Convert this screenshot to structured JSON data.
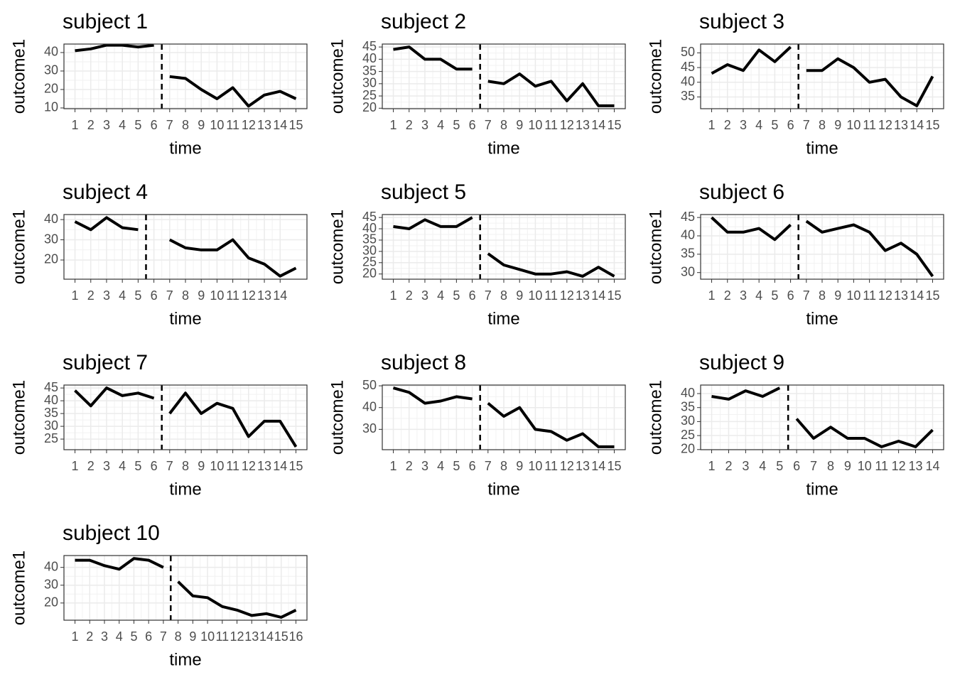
{
  "chart_data": [
    {
      "type": "line",
      "title": "subject 1",
      "x_label": "time",
      "y_label": "outcome1",
      "x": [
        1,
        2,
        3,
        4,
        5,
        6,
        7,
        8,
        9,
        10,
        11,
        12,
        13,
        14,
        15
      ],
      "xticks": [
        1,
        2,
        3,
        4,
        5,
        6,
        7,
        8,
        9,
        10,
        11,
        12,
        13,
        14,
        15
      ],
      "xlim": [
        0.3,
        15.7
      ],
      "ylim": [
        9.6,
        44.6
      ],
      "yticks": [
        10,
        20,
        30,
        40
      ],
      "phase_change": 6.5,
      "grid": true,
      "series": [
        {
          "color": "#000000",
          "values": [
            41,
            42,
            44,
            44,
            43,
            44,
            null,
            null,
            null,
            null,
            null,
            null,
            null,
            null,
            null
          ]
        },
        {
          "color": "#000000",
          "values": [
            null,
            null,
            null,
            null,
            null,
            null,
            27,
            26,
            20,
            15,
            21,
            11,
            17,
            19,
            15
          ]
        }
      ]
    },
    {
      "type": "line",
      "title": "subject 2",
      "x_label": "time",
      "y_label": "outcome1",
      "x": [
        1,
        2,
        3,
        4,
        5,
        6,
        7,
        8,
        9,
        10,
        11,
        12,
        13,
        14,
        15
      ],
      "xticks": [
        1,
        2,
        3,
        4,
        5,
        6,
        7,
        8,
        9,
        10,
        11,
        12,
        13,
        14,
        15
      ],
      "xlim": [
        0.3,
        15.7
      ],
      "ylim": [
        19.8,
        46.2
      ],
      "yticks": [
        20,
        25,
        30,
        35,
        40,
        45
      ],
      "phase_change": 6.5,
      "grid": true,
      "series": [
        {
          "color": "#000000",
          "values": [
            44,
            45,
            40,
            40,
            36,
            36,
            null,
            null,
            null,
            null,
            null,
            null,
            null,
            null,
            null
          ]
        },
        {
          "color": "#000000",
          "values": [
            null,
            null,
            null,
            null,
            null,
            null,
            31,
            30,
            34,
            29,
            31,
            23,
            30,
            21,
            21
          ]
        }
      ]
    },
    {
      "type": "line",
      "title": "subject 3",
      "x_label": "time",
      "y_label": "outcome1",
      "x": [
        1,
        2,
        3,
        4,
        5,
        6,
        7,
        8,
        9,
        10,
        11,
        12,
        13,
        14,
        15
      ],
      "xticks": [
        1,
        2,
        3,
        4,
        5,
        6,
        7,
        8,
        9,
        10,
        11,
        12,
        13,
        14,
        15
      ],
      "xlim": [
        0.3,
        15.7
      ],
      "ylim": [
        31,
        53
      ],
      "yticks": [
        35,
        40,
        45,
        50
      ],
      "phase_change": 6.5,
      "grid": true,
      "series": [
        {
          "color": "#000000",
          "values": [
            43,
            46,
            44,
            51,
            47,
            52,
            null,
            null,
            null,
            null,
            null,
            null,
            null,
            null,
            null
          ]
        },
        {
          "color": "#000000",
          "values": [
            null,
            null,
            null,
            null,
            null,
            null,
            44,
            44,
            48,
            45,
            40,
            41,
            35,
            32,
            42
          ]
        }
      ]
    },
    {
      "type": "line",
      "title": "subject 4",
      "x_label": "time",
      "y_label": "outcome1",
      "x": [
        1,
        2,
        3,
        4,
        5,
        6,
        7,
        8,
        9,
        10,
        11,
        12,
        13,
        14,
        15
      ],
      "xticks": [
        1,
        2,
        3,
        4,
        5,
        6,
        7,
        8,
        9,
        10,
        11,
        12,
        13,
        14
      ],
      "xlim": [
        0.3,
        15.7
      ],
      "ylim": [
        10.5,
        42.5
      ],
      "yticks": [
        20,
        30,
        40
      ],
      "phase_change": 5.5,
      "grid": true,
      "series": [
        {
          "color": "#000000",
          "values": [
            39,
            35,
            41,
            36,
            35,
            null,
            null,
            null,
            null,
            null,
            null,
            null,
            null,
            null,
            null
          ]
        },
        {
          "color": "#000000",
          "values": [
            null,
            null,
            null,
            null,
            null,
            null,
            30,
            26,
            25,
            25,
            30,
            21,
            18,
            12,
            16
          ]
        }
      ]
    },
    {
      "type": "line",
      "title": "subject 5",
      "x_label": "time",
      "y_label": "outcome1",
      "x": [
        1,
        2,
        3,
        4,
        5,
        6,
        7,
        8,
        9,
        10,
        11,
        12,
        13,
        14,
        15
      ],
      "xticks": [
        1,
        2,
        3,
        4,
        5,
        6,
        7,
        8,
        9,
        10,
        11,
        12,
        13,
        14,
        15
      ],
      "xlim": [
        0.3,
        15.7
      ],
      "ylim": [
        17.7,
        46.3
      ],
      "yticks": [
        20,
        25,
        30,
        35,
        40,
        45
      ],
      "phase_change": 6.5,
      "grid": true,
      "series": [
        {
          "color": "#000000",
          "values": [
            41,
            40,
            44,
            41,
            41,
            45,
            null,
            null,
            null,
            null,
            null,
            null,
            null,
            null,
            null
          ]
        },
        {
          "color": "#000000",
          "values": [
            null,
            null,
            null,
            null,
            null,
            null,
            29,
            24,
            22,
            20,
            20,
            21,
            19,
            23,
            19
          ]
        }
      ]
    },
    {
      "type": "line",
      "title": "subject 6",
      "x_label": "time",
      "y_label": "outcome1",
      "x": [
        1,
        2,
        3,
        4,
        5,
        6,
        7,
        8,
        9,
        10,
        11,
        12,
        13,
        14,
        15
      ],
      "xticks": [
        1,
        2,
        3,
        4,
        5,
        6,
        7,
        8,
        9,
        10,
        11,
        12,
        13,
        14,
        15
      ],
      "xlim": [
        0.3,
        15.7
      ],
      "ylim": [
        28.2,
        45.8
      ],
      "yticks": [
        30,
        35,
        40,
        45
      ],
      "phase_change": 6.5,
      "grid": true,
      "series": [
        {
          "color": "#000000",
          "values": [
            45,
            41,
            41,
            42,
            39,
            43,
            null,
            null,
            null,
            null,
            null,
            null,
            null,
            null,
            null
          ]
        },
        {
          "color": "#000000",
          "values": [
            null,
            null,
            null,
            null,
            null,
            null,
            44,
            41,
            42,
            43,
            41,
            36,
            38,
            35,
            29
          ]
        }
      ]
    },
    {
      "type": "line",
      "title": "subject 7",
      "x_label": "time",
      "y_label": "outcome1",
      "x": [
        1,
        2,
        3,
        4,
        5,
        6,
        7,
        8,
        9,
        10,
        11,
        12,
        13,
        14,
        15
      ],
      "xticks": [
        1,
        2,
        3,
        4,
        5,
        6,
        7,
        8,
        9,
        10,
        11,
        12,
        13,
        14,
        15
      ],
      "xlim": [
        0.3,
        15.7
      ],
      "ylim": [
        20.85,
        46.15
      ],
      "yticks": [
        25,
        30,
        35,
        40,
        45
      ],
      "phase_change": 6.5,
      "grid": true,
      "series": [
        {
          "color": "#000000",
          "values": [
            44,
            38,
            45,
            42,
            43,
            41,
            null,
            null,
            null,
            null,
            null,
            null,
            null,
            null,
            null
          ]
        },
        {
          "color": "#000000",
          "values": [
            null,
            null,
            null,
            null,
            null,
            null,
            35,
            43,
            35,
            39,
            37,
            26,
            32,
            32,
            22
          ]
        }
      ]
    },
    {
      "type": "line",
      "title": "subject 8",
      "x_label": "time",
      "y_label": "outcome1",
      "x": [
        1,
        2,
        3,
        4,
        5,
        6,
        7,
        8,
        9,
        10,
        11,
        12,
        13,
        14,
        15
      ],
      "xticks": [
        1,
        2,
        3,
        4,
        5,
        6,
        7,
        8,
        9,
        10,
        11,
        12,
        13,
        14,
        15
      ],
      "xlim": [
        0.3,
        15.7
      ],
      "ylim": [
        20.65,
        50.35
      ],
      "yticks": [
        30,
        40,
        50
      ],
      "phase_change": 6.5,
      "grid": true,
      "series": [
        {
          "color": "#000000",
          "values": [
            49,
            47,
            42,
            43,
            45,
            44,
            null,
            null,
            null,
            null,
            null,
            null,
            null,
            null,
            null
          ]
        },
        {
          "color": "#000000",
          "values": [
            null,
            null,
            null,
            null,
            null,
            null,
            42,
            36,
            40,
            30,
            29,
            25,
            28,
            22,
            22
          ]
        }
      ]
    },
    {
      "type": "line",
      "title": "subject 9",
      "x_label": "time",
      "y_label": "outcome1",
      "x": [
        1,
        2,
        3,
        4,
        5,
        6,
        7,
        8,
        9,
        10,
        11,
        12,
        13,
        14
      ],
      "xticks": [
        1,
        2,
        3,
        4,
        5,
        6,
        7,
        8,
        9,
        10,
        11,
        12,
        13,
        14
      ],
      "xlim": [
        0.35,
        14.65
      ],
      "ylim": [
        19.95,
        43.05
      ],
      "yticks": [
        20,
        25,
        30,
        35,
        40
      ],
      "phase_change": 5.5,
      "grid": true,
      "series": [
        {
          "color": "#000000",
          "values": [
            39,
            38,
            41,
            39,
            42,
            null,
            null,
            null,
            null,
            null,
            null,
            null,
            null,
            null
          ]
        },
        {
          "color": "#000000",
          "values": [
            null,
            null,
            null,
            null,
            null,
            31,
            24,
            28,
            24,
            24,
            21,
            23,
            21,
            27
          ]
        }
      ]
    },
    {
      "type": "line",
      "title": "subject 10",
      "x_label": "time",
      "y_label": "outcome1",
      "x": [
        1,
        2,
        3,
        4,
        5,
        6,
        7,
        8,
        9,
        10,
        11,
        12,
        13,
        14,
        15,
        16
      ],
      "xticks": [
        1,
        2,
        3,
        4,
        5,
        6,
        7,
        8,
        9,
        10,
        11,
        12,
        13,
        14,
        15,
        16
      ],
      "xlim": [
        0.25,
        16.75
      ],
      "ylim": [
        10.35,
        46.65
      ],
      "yticks": [
        20,
        30,
        40
      ],
      "phase_change": 7.5,
      "grid": true,
      "series": [
        {
          "color": "#000000",
          "values": [
            44,
            44,
            41,
            39,
            45,
            44,
            40,
            null,
            null,
            null,
            null,
            null,
            null,
            null,
            null,
            null
          ]
        },
        {
          "color": "#000000",
          "values": [
            null,
            null,
            null,
            null,
            null,
            null,
            null,
            32,
            24,
            23,
            18,
            16,
            13,
            14,
            12,
            16
          ]
        }
      ]
    }
  ]
}
